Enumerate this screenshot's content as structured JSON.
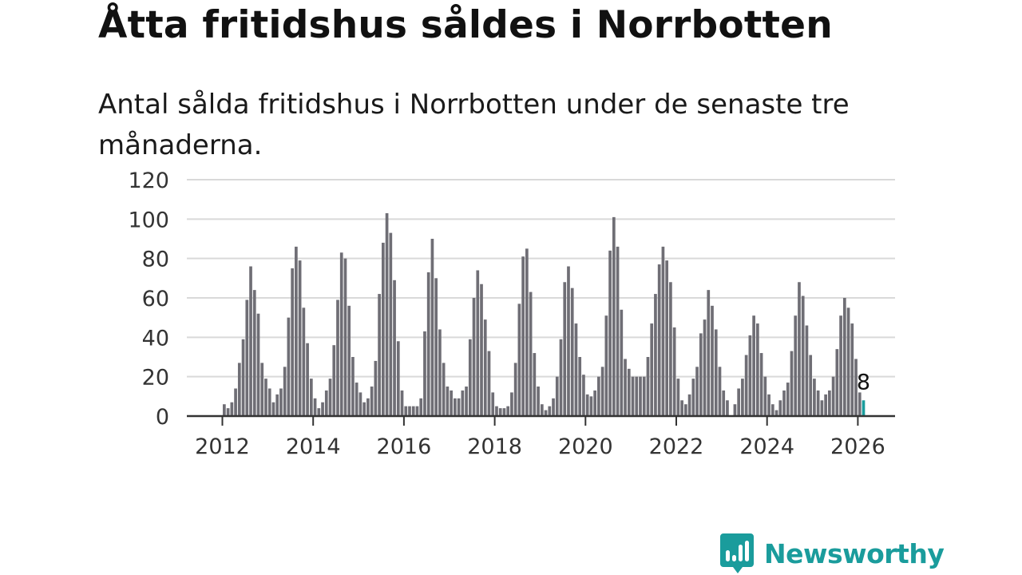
{
  "title": "Åtta fritidshus såldes i Norrbotten",
  "subtitle": "Antal sålda fritidshus i Norrbotten under de senaste tre månaderna.",
  "brand": {
    "name": "Newsworthy",
    "color": "#1a9c9c"
  },
  "colors": {
    "bar": "#6f6e75",
    "highlight": "#1a9c9c",
    "grid": "#d9d9d9",
    "axis": "#333333"
  },
  "chart_data": {
    "type": "bar",
    "xlabel": "",
    "ylabel": "",
    "ylim": [
      0,
      120
    ],
    "yticks": [
      0,
      20,
      40,
      60,
      80,
      100,
      120
    ],
    "xticks": [
      "2012",
      "2014",
      "2016",
      "2018",
      "2020",
      "2022",
      "2024",
      "2026"
    ],
    "grid": true,
    "start": "2012-01",
    "end": "2026-02",
    "annotation": {
      "label": "8",
      "period": "2026-02"
    },
    "values": [
      6,
      4,
      7,
      14,
      27,
      39,
      59,
      76,
      64,
      52,
      27,
      19,
      14,
      7,
      11,
      14,
      25,
      50,
      75,
      86,
      79,
      55,
      37,
      19,
      9,
      4,
      7,
      13,
      19,
      36,
      59,
      83,
      80,
      56,
      30,
      17,
      12,
      7,
      9,
      15,
      28,
      62,
      88,
      103,
      93,
      69,
      38,
      13,
      5,
      5,
      5,
      5,
      9,
      43,
      73,
      90,
      70,
      44,
      27,
      15,
      13,
      9,
      9,
      13,
      15,
      39,
      60,
      74,
      67,
      49,
      33,
      12,
      5,
      4,
      4,
      5,
      12,
      27,
      57,
      81,
      85,
      63,
      32,
      15,
      6,
      3,
      5,
      9,
      20,
      39,
      68,
      76,
      65,
      47,
      30,
      21,
      11,
      10,
      13,
      20,
      25,
      51,
      84,
      101,
      86,
      54,
      29,
      24,
      20,
      20,
      20,
      20,
      30,
      47,
      62,
      77,
      86,
      79,
      68,
      45,
      19,
      8,
      6,
      11,
      19,
      25,
      42,
      49,
      64,
      56,
      44,
      25,
      13,
      8,
      0,
      6,
      14,
      19,
      31,
      41,
      51,
      47,
      32,
      20,
      11,
      6,
      3,
      8,
      13,
      17,
      33,
      51,
      68,
      61,
      46,
      31,
      19,
      13,
      8,
      11,
      13,
      20,
      34,
      51,
      60,
      55,
      47,
      29,
      12,
      8
    ]
  }
}
